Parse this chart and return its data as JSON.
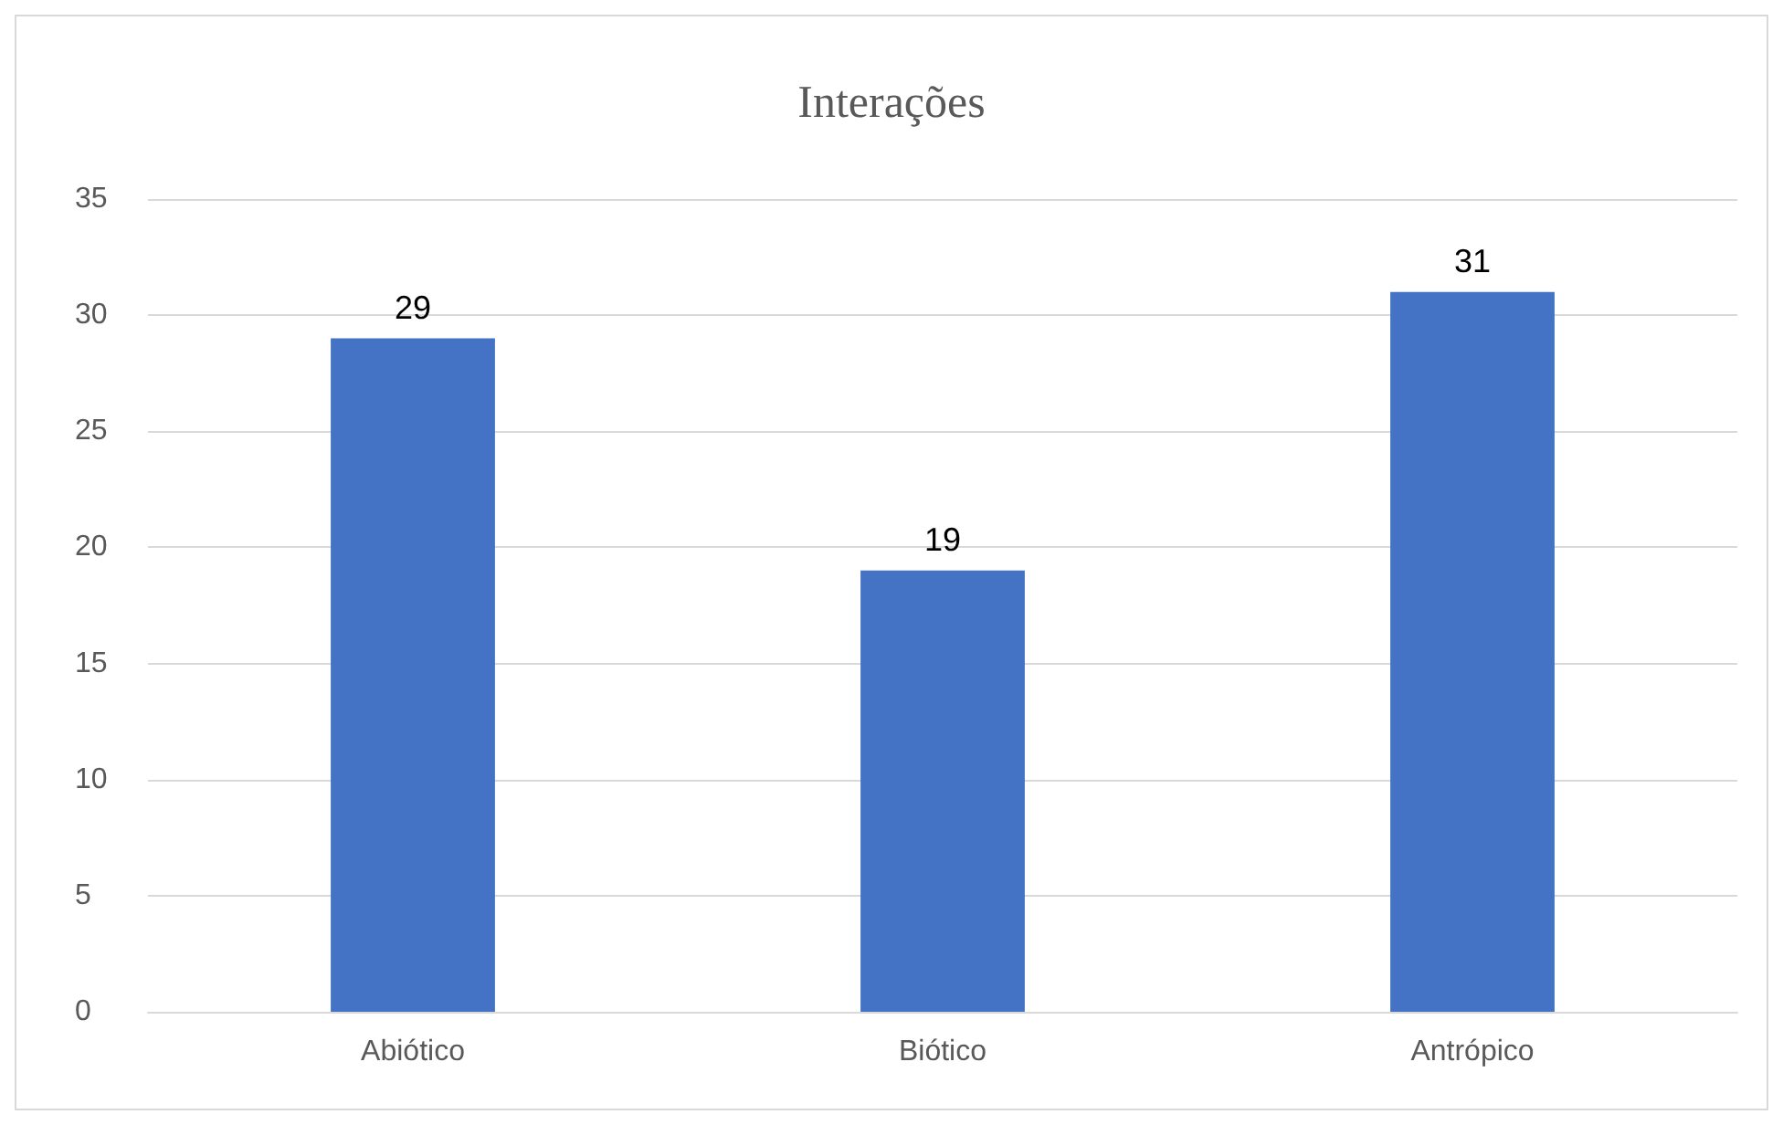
{
  "chart_data": {
    "type": "bar",
    "title": "Interações",
    "categories": [
      "Abiótico",
      "Biótico",
      "Antrópico"
    ],
    "values": [
      29,
      19,
      31
    ],
    "color": "#4472c4",
    "ylim": [
      0,
      35
    ],
    "yticks": [
      0,
      5,
      10,
      15,
      20,
      25,
      30,
      35
    ],
    "grid": "y",
    "data_labels": true
  }
}
